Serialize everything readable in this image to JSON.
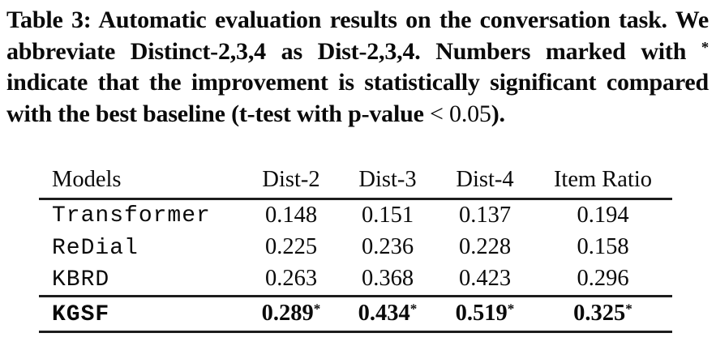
{
  "caption": {
    "part1": "Table 3: Automatic evaluation results on the conversation task. We abbreviate Distinct-2,3,4 as Dist-2,3,4. Numbers marked with ",
    "star": "*",
    "part2": " indicate that the improvement is statistically significant compared with the best baseline (t-test with p-value ",
    "math": "< 0.05",
    "part3": ")."
  },
  "chart_data": {
    "type": "table",
    "title": "Table 3: Automatic evaluation results on the conversation task",
    "columns": [
      "Models",
      "Dist-2",
      "Dist-3",
      "Dist-4",
      "Item Ratio"
    ],
    "rows": [
      {
        "model": "Transformer",
        "cells": [
          "0.148",
          "0.151",
          "0.137",
          "0.194"
        ]
      },
      {
        "model": "ReDial",
        "cells": [
          "0.225",
          "0.236",
          "0.228",
          "0.158"
        ]
      },
      {
        "model": "KBRD",
        "cells": [
          "0.263",
          "0.368",
          "0.423",
          "0.296"
        ]
      },
      {
        "model": "KGSF",
        "cells": [
          "0.289",
          "0.434",
          "0.519",
          "0.325"
        ],
        "significance_marker": "*",
        "bold": true
      }
    ],
    "star_marker": "*",
    "colors": {
      "text": "#0a0a0a",
      "background": "#ffffff",
      "rule": "#1d1d1d"
    }
  }
}
